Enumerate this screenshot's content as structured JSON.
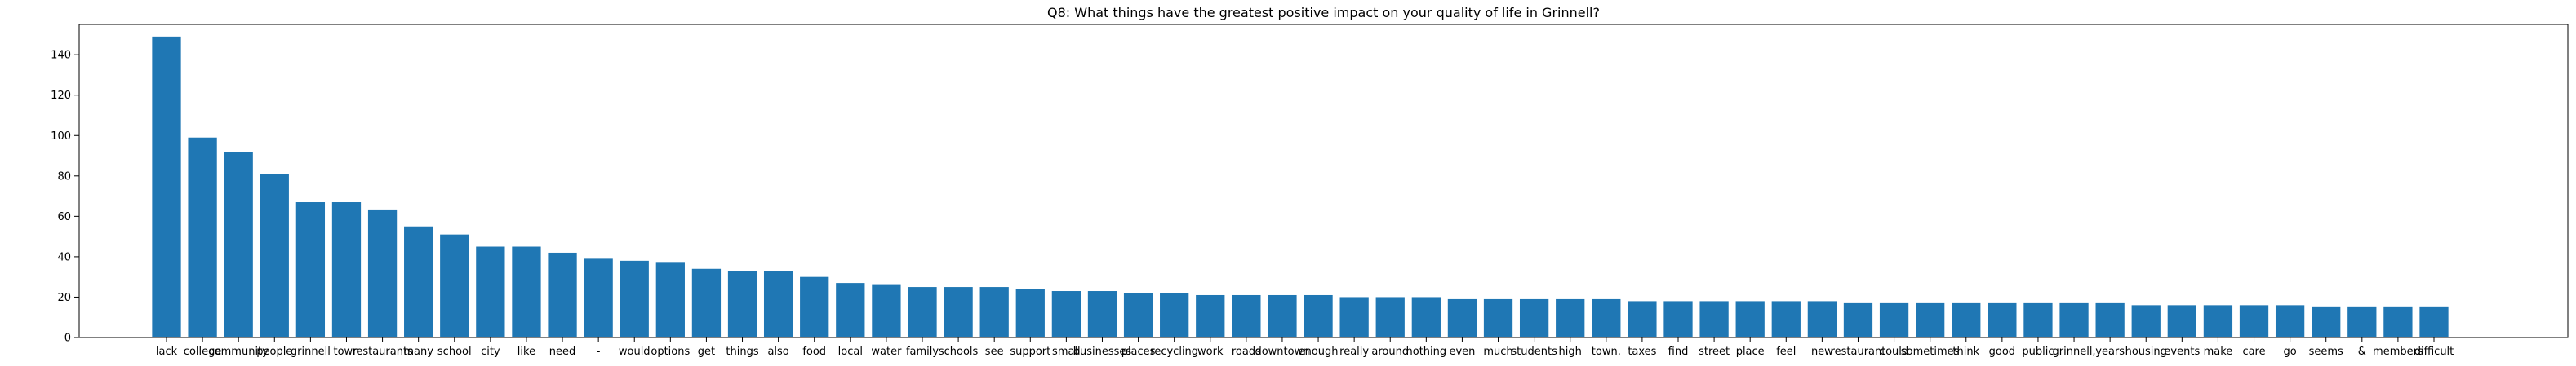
{
  "chart_data": {
    "type": "bar",
    "title": "Q8: What things have the greatest positive impact on your quality of life in Grinnell?",
    "xlabel": "",
    "ylabel": "",
    "ylim": [
      0,
      155
    ],
    "yticks": [
      0,
      20,
      40,
      60,
      80,
      100,
      120,
      140
    ],
    "grid": false,
    "bar_color": "#1f77b4",
    "categories": [
      "lack",
      "college",
      "community",
      "people",
      "grinnell",
      "town",
      "restaurants",
      "many",
      "school",
      "city",
      "like",
      "need",
      "-",
      "would",
      "options",
      "get",
      "things",
      "also",
      "food",
      "local",
      "water",
      "family",
      "schools",
      "see",
      "support",
      "small",
      "businesses",
      "places",
      "recycling",
      "work",
      "roads",
      "downtown",
      "enough",
      "really",
      "around",
      "nothing",
      "even",
      "much",
      "students",
      "high",
      "town.",
      "taxes",
      "find",
      "street",
      "place",
      "feel",
      "new",
      "restaurant",
      "could",
      "sometimes",
      "think",
      "good",
      "public",
      "grinnell,",
      "years",
      "housing",
      "events",
      "make",
      "care",
      "go",
      "seems",
      "&",
      "members",
      "difficult"
    ],
    "values": [
      149,
      99,
      92,
      81,
      67,
      67,
      63,
      55,
      51,
      45,
      45,
      42,
      39,
      38,
      37,
      34,
      33,
      33,
      30,
      27,
      26,
      25,
      25,
      25,
      24,
      23,
      23,
      22,
      22,
      21,
      21,
      21,
      21,
      20,
      20,
      20,
      19,
      19,
      19,
      19,
      19,
      18,
      18,
      18,
      18,
      18,
      18,
      17,
      17,
      17,
      17,
      17,
      17,
      17,
      17,
      16,
      16,
      16,
      16,
      16,
      15,
      15,
      15,
      15
    ]
  }
}
